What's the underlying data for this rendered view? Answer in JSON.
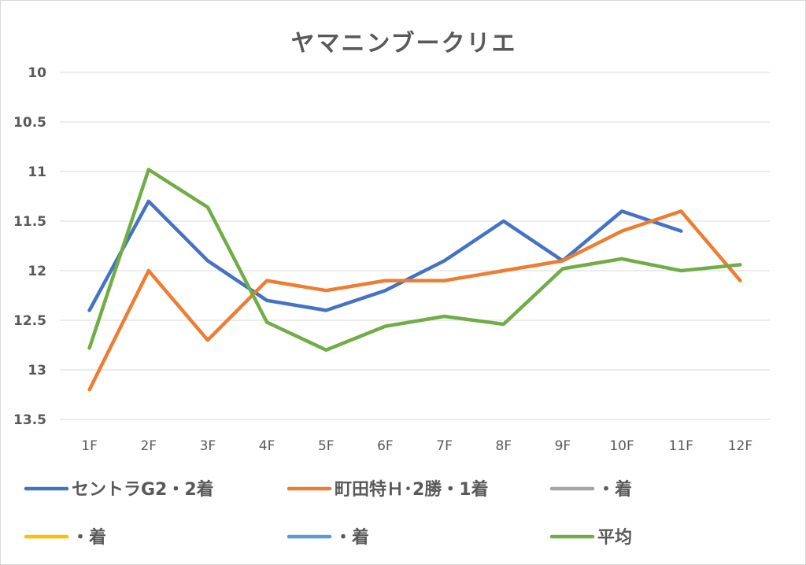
{
  "chart_data": {
    "type": "line",
    "title": "ヤマニンブークリエ",
    "categories": [
      "1F",
      "2F",
      "3F",
      "4F",
      "5F",
      "6F",
      "7F",
      "8F",
      "9F",
      "10F",
      "11F",
      "12F"
    ],
    "ylim": [
      10,
      13.5
    ],
    "y_inverted": true,
    "yticks": [
      "10",
      "10.5",
      "11",
      "11.5",
      "12",
      "12.5",
      "13",
      "13.5"
    ],
    "ytick_values": [
      10,
      10.5,
      11,
      11.5,
      12,
      12.5,
      13,
      13.5
    ],
    "grid": true,
    "legend_position": "bottom",
    "series": [
      {
        "name": "セントラG2・2着",
        "color": "#4472c4",
        "values": [
          12.4,
          11.3,
          11.9,
          12.3,
          12.4,
          12.2,
          11.9,
          11.5,
          11.9,
          11.4,
          11.6,
          null
        ]
      },
      {
        "name": "町田特Ｈ･2勝・1着",
        "color": "#ed7d31",
        "values": [
          13.2,
          12.0,
          12.7,
          12.1,
          12.2,
          12.1,
          12.1,
          12.0,
          11.9,
          11.6,
          11.4,
          12.1
        ]
      },
      {
        "name": "・着",
        "color": "#a5a5a5",
        "values": [
          null,
          null,
          null,
          null,
          null,
          null,
          null,
          null,
          null,
          null,
          null,
          null
        ]
      },
      {
        "name": "・着",
        "color": "#ffc000",
        "values": [
          null,
          null,
          null,
          null,
          null,
          null,
          null,
          null,
          null,
          null,
          null,
          null
        ]
      },
      {
        "name": "・着",
        "color": "#5b9bd5",
        "values": [
          null,
          null,
          null,
          null,
          null,
          null,
          null,
          null,
          null,
          null,
          null,
          null
        ]
      },
      {
        "name": "平均",
        "color": "#70ad47",
        "values": [
          12.78,
          10.98,
          11.36,
          12.52,
          12.8,
          12.56,
          12.46,
          12.54,
          11.98,
          11.88,
          12.0,
          11.94
        ]
      }
    ]
  }
}
